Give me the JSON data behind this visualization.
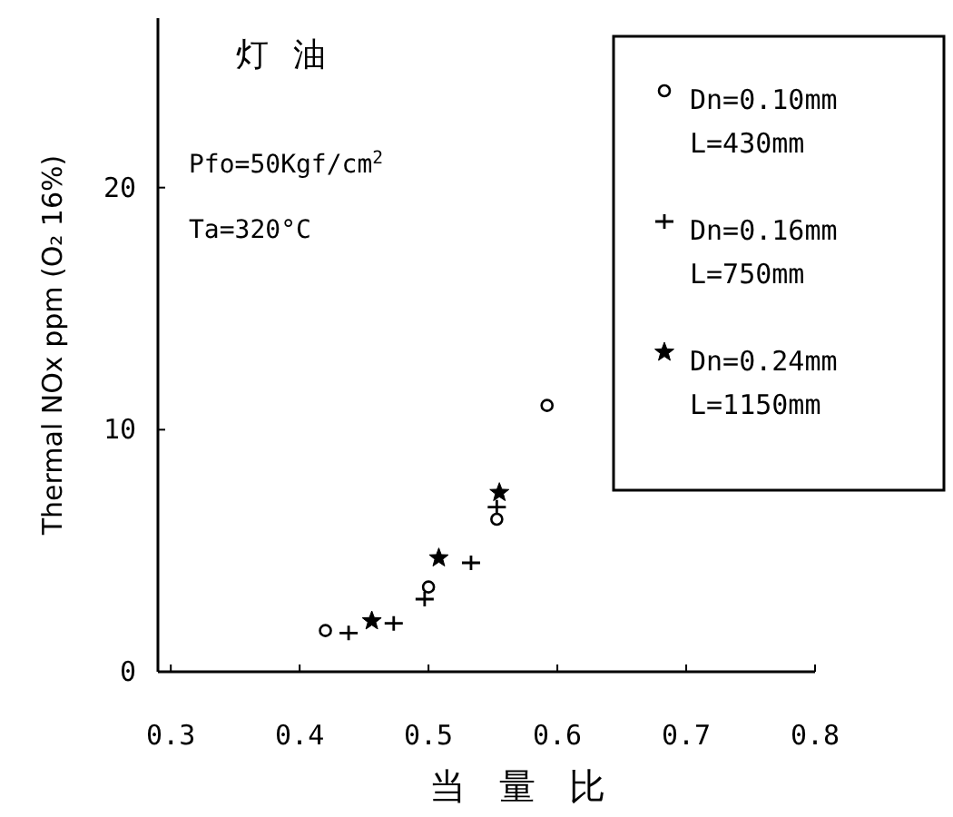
{
  "chart_data": {
    "type": "scatter",
    "title": "灯 油",
    "xlabel": "当 量 比",
    "ylabel": "Thermal NOx ppm  (O₂ 16%)",
    "annotations": [
      "Pfo=50Kgf/cm$^{2}$",
      "Ta=320°C"
    ],
    "xlim": [
      0.29,
      0.8
    ],
    "ylim": [
      0,
      27
    ],
    "xticks": [
      {
        "value": 0.3,
        "label": "0.3"
      },
      {
        "value": 0.4,
        "label": "0.4"
      },
      {
        "value": 0.5,
        "label": "0.5"
      },
      {
        "value": 0.6,
        "label": "0.6"
      },
      {
        "value": 0.7,
        "label": "0.7"
      },
      {
        "value": 0.8,
        "label": "0.8"
      }
    ],
    "yticks": [
      0,
      10,
      20
    ],
    "legend": "top right",
    "grid": false,
    "series": [
      {
        "name": "Dn=0.10mm\nL=430mm",
        "color": "#000000",
        "marker": "circle",
        "x": [
          0.42,
          0.5,
          0.553,
          0.592
        ],
        "values": [
          1.7,
          3.5,
          6.3,
          11.0
        ]
      },
      {
        "name": "Dn=0.16mm\nL=750mm",
        "color": "#000000",
        "marker": "cross",
        "x": [
          0.438,
          0.473,
          0.497,
          0.533,
          0.553
        ],
        "values": [
          1.6,
          2.0,
          3.0,
          4.5,
          6.8
        ]
      },
      {
        "name": "Dn=0.24mm\nL=1150mm",
        "color": "#000000",
        "marker": "star",
        "x": [
          0.456,
          0.508,
          0.555
        ],
        "values": [
          2.1,
          4.7,
          7.4
        ]
      }
    ]
  }
}
